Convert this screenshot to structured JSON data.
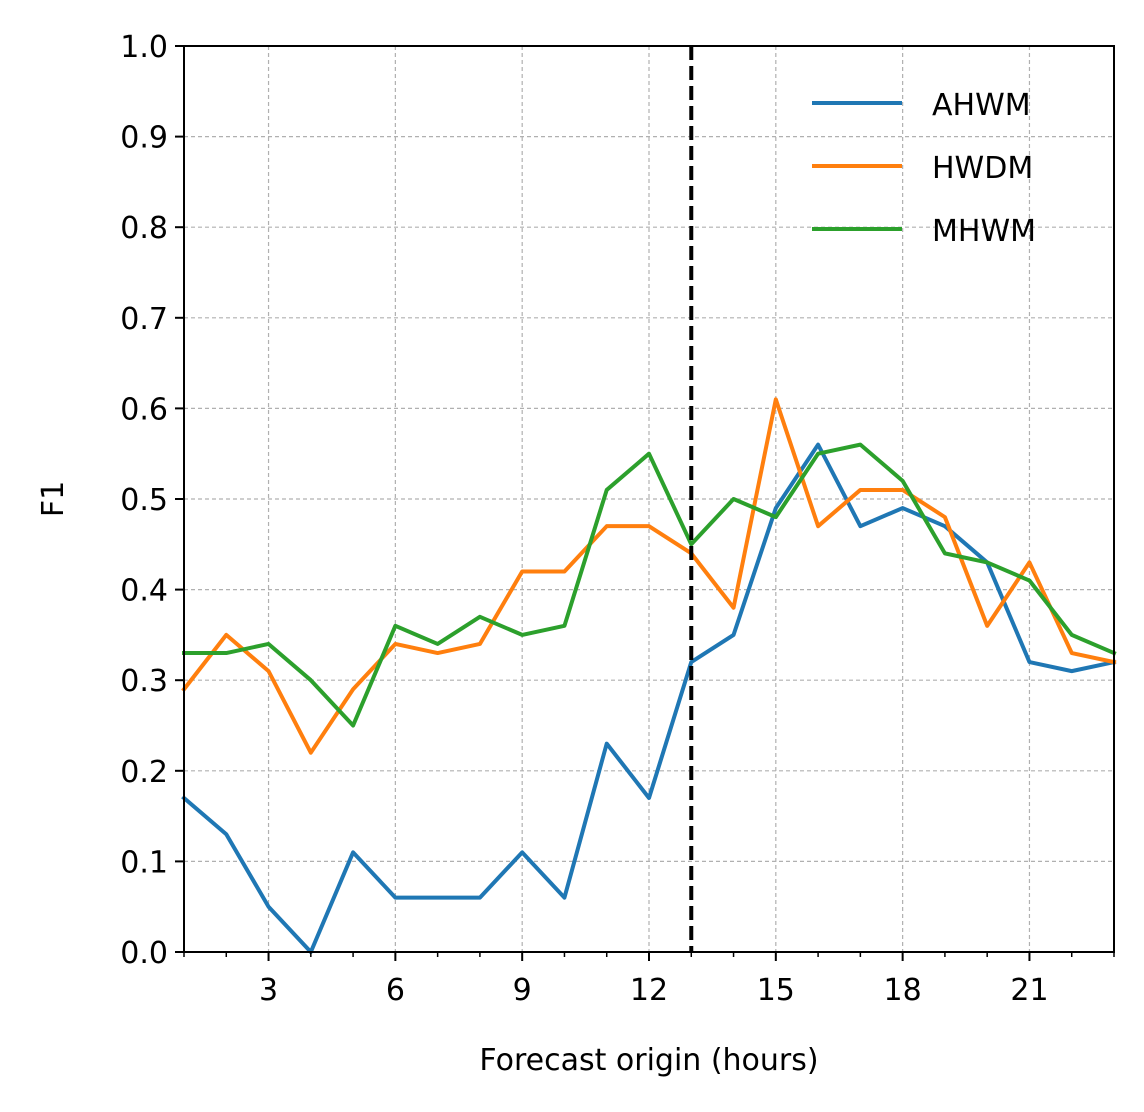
{
  "chart_data": {
    "type": "line",
    "xlabel": "Forecast origin (hours)",
    "ylabel": "F1",
    "xlim": [
      1,
      23
    ],
    "ylim": [
      0,
      1
    ],
    "x_ticks": [
      3,
      6,
      9,
      12,
      15,
      18,
      21
    ],
    "x_tick_labels": [
      "3",
      "6",
      "9",
      "12",
      "15",
      "18",
      "21"
    ],
    "x_minor_ticks": [
      1,
      2,
      4,
      5,
      7,
      8,
      10,
      11,
      13,
      14,
      16,
      17,
      19,
      20,
      22,
      23
    ],
    "y_ticks": [
      0,
      0.1,
      0.2,
      0.3,
      0.4,
      0.5,
      0.6,
      0.7,
      0.8,
      0.9,
      1.0
    ],
    "y_tick_labels": [
      "0.0",
      "0.1",
      "0.2",
      "0.3",
      "0.4",
      "0.5",
      "0.6",
      "0.7",
      "0.8",
      "0.9",
      "1.0"
    ],
    "grid": true,
    "legend_position": "top-right",
    "vertical_line": {
      "x": 13,
      "style": "dashed",
      "color": "#000000"
    },
    "x": [
      1,
      2,
      3,
      4,
      5,
      6,
      7,
      8,
      9,
      10,
      11,
      12,
      13,
      14,
      15,
      16,
      17,
      18,
      19,
      20,
      21,
      22,
      23
    ],
    "series": [
      {
        "name": "AHWM",
        "color": "#1f77b4",
        "values": [
          0.17,
          0.13,
          0.05,
          0.0,
          0.11,
          0.06,
          0.06,
          0.06,
          0.11,
          0.06,
          0.23,
          0.17,
          0.32,
          0.35,
          0.49,
          0.56,
          0.47,
          0.49,
          0.47,
          0.43,
          0.32,
          0.31,
          0.32
        ]
      },
      {
        "name": "HWDM",
        "color": "#ff7f0e",
        "values": [
          0.29,
          0.35,
          0.31,
          0.22,
          0.29,
          0.34,
          0.33,
          0.34,
          0.42,
          0.42,
          0.47,
          0.47,
          0.44,
          0.38,
          0.61,
          0.47,
          0.51,
          0.51,
          0.48,
          0.36,
          0.43,
          0.33,
          0.32
        ]
      },
      {
        "name": "MHWM",
        "color": "#2ca02c",
        "values": [
          0.33,
          0.33,
          0.34,
          0.3,
          0.25,
          0.36,
          0.34,
          0.37,
          0.35,
          0.36,
          0.51,
          0.55,
          0.45,
          0.5,
          0.48,
          0.55,
          0.56,
          0.52,
          0.44,
          0.43,
          0.41,
          0.35,
          0.33
        ]
      }
    ]
  }
}
